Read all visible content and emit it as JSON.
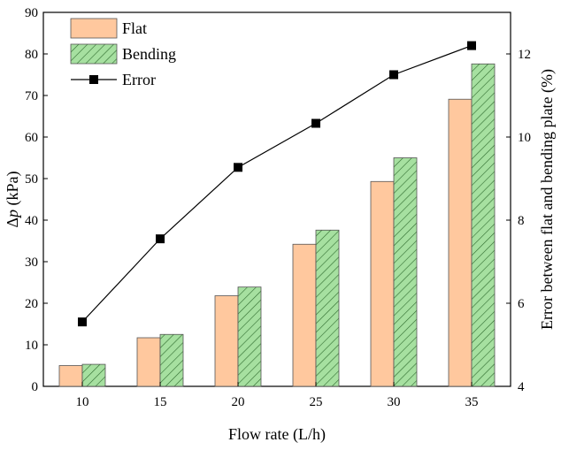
{
  "chart_data": {
    "type": "bar",
    "title": "",
    "categories": [
      "10",
      "15",
      "20",
      "25",
      "30",
      "35"
    ],
    "series": [
      {
        "name": "Flat",
        "axis": "left",
        "values": [
          5.0,
          11.7,
          21.8,
          34.2,
          49.3,
          69.1
        ],
        "color": "#FFC89E",
        "pattern": "none"
      },
      {
        "name": "Bending",
        "axis": "left",
        "values": [
          5.3,
          12.5,
          23.9,
          37.6,
          55.0,
          77.6
        ],
        "color": "#A6E0A0",
        "pattern": "diagonal-hatch"
      },
      {
        "name": "Error",
        "type": "line",
        "axis": "right",
        "marker": "square",
        "values": [
          5.55,
          7.55,
          9.27,
          10.33,
          11.5,
          12.2
        ],
        "color": "#000000"
      }
    ],
    "xlabel": "Flow rate (L/h)",
    "ylabel_prefix": "Δ",
    "ylabel_var": "p",
    "ylabel_unit": " (kPa)",
    "ylabel_right": "Error between flat and bending plate (%)",
    "ylim": [
      0,
      90
    ],
    "yticks": [
      0,
      10,
      20,
      30,
      40,
      50,
      60,
      70,
      80,
      90
    ],
    "ylim_right": [
      4,
      13
    ],
    "yticks_right": [
      4,
      6,
      8,
      10,
      12
    ],
    "legend": {
      "position": "top-left",
      "entries": [
        "Flat",
        "Bending",
        "Error"
      ]
    },
    "grid": false
  }
}
